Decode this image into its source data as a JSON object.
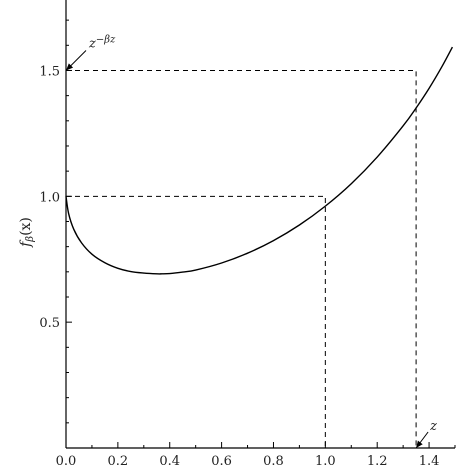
{
  "chart_data": {
    "type": "line",
    "title": "",
    "xlabel": "",
    "ylabel": {
      "base": "f",
      "sub": "β",
      "arg": "(x)"
    },
    "xlim": [
      0,
      1.5
    ],
    "ylim": [
      0,
      1.78
    ],
    "grid": false,
    "legend": "none",
    "x_ticks": [
      {
        "value": 0.0,
        "label": "0.0"
      },
      {
        "value": 0.2,
        "label": "0.2"
      },
      {
        "value": 0.4,
        "label": "0.4"
      },
      {
        "value": 0.6,
        "label": "0.6"
      },
      {
        "value": 0.8,
        "label": "0.8"
      },
      {
        "value": 1.0,
        "label": "1.0"
      },
      {
        "value": 1.2,
        "label": "1.2"
      },
      {
        "value": 1.4,
        "label": "1.4"
      }
    ],
    "y_ticks": [
      {
        "value": 0.5,
        "label": "0.5"
      },
      {
        "value": 1.0,
        "label": "1.0"
      },
      {
        "value": 1.5,
        "label": "1.5"
      }
    ],
    "series": [
      {
        "color": "#000000",
        "x": [
          0.0,
          0.01,
          0.03,
          0.06,
          0.1,
          0.15,
          0.2,
          0.25,
          0.3,
          0.35,
          0.37,
          0.4,
          0.45,
          0.5,
          0.6,
          0.7,
          0.8,
          0.9,
          1.0,
          1.1,
          1.2,
          1.3,
          1.35,
          1.4,
          1.45,
          1.49
        ],
        "y": [
          1.0,
          0.932,
          0.869,
          0.815,
          0.77,
          0.736,
          0.714,
          0.701,
          0.695,
          0.692,
          0.692,
          0.693,
          0.699,
          0.707,
          0.735,
          0.774,
          0.824,
          0.886,
          0.961,
          1.05,
          1.156,
          1.28,
          1.351,
          1.429,
          1.516,
          1.593
        ]
      }
    ],
    "guides": [
      {
        "y": 1.0,
        "x_end": 1.0
      },
      {
        "y": 1.5,
        "x_end": 1.35
      }
    ],
    "annotations": [
      {
        "text_base": "z",
        "text_sup": "−βz",
        "x": 0.0,
        "y": 1.5,
        "position": "upper-right"
      },
      {
        "text_base": "z",
        "text_sup": "",
        "x": 1.35,
        "y": 0.0,
        "position": "upper-right"
      }
    ]
  }
}
